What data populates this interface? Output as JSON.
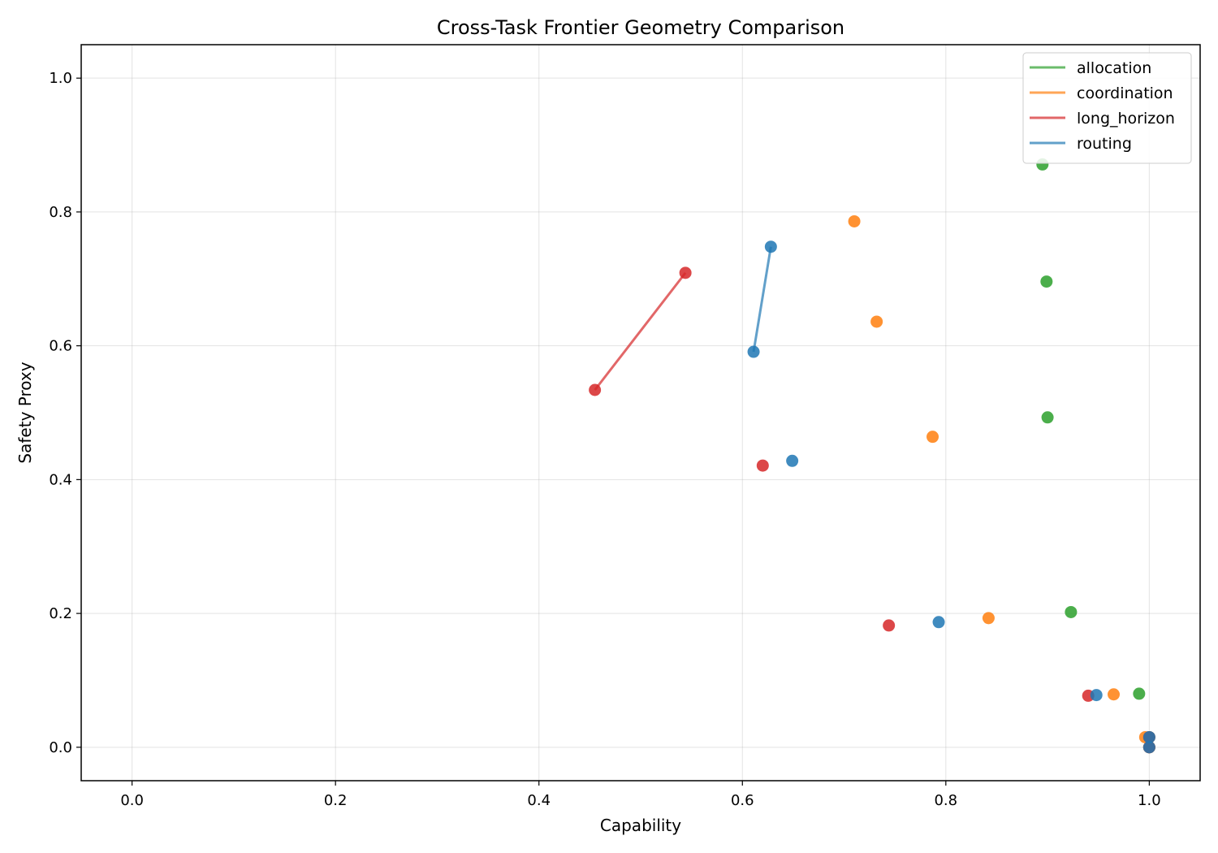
{
  "chart_data": {
    "type": "scatter",
    "title": "Cross-Task Frontier Geometry Comparison",
    "xlabel": "Capability",
    "ylabel": "Safety Proxy",
    "xlim": [
      -0.05,
      1.05
    ],
    "ylim": [
      -0.05,
      1.05
    ],
    "xticks": [
      0.0,
      0.2,
      0.4,
      0.6,
      0.8,
      1.0
    ],
    "yticks": [
      0.0,
      0.2,
      0.4,
      0.6,
      0.8,
      1.0
    ],
    "tick_labels_x": [
      "0.0",
      "0.2",
      "0.4",
      "0.6",
      "0.8",
      "1.0"
    ],
    "tick_labels_y": [
      "0.0",
      "0.2",
      "0.4",
      "0.6",
      "0.8",
      "1.0"
    ],
    "grid": true,
    "legend_position": "top-right",
    "series": [
      {
        "name": "allocation",
        "color": "#2ca02c",
        "points": [
          [
            0.895,
            0.871
          ],
          [
            0.899,
            0.696
          ],
          [
            0.9,
            0.493
          ],
          [
            0.923,
            0.202
          ],
          [
            0.99,
            0.08
          ],
          [
            1.0,
            0.015
          ],
          [
            1.0,
            0.0
          ]
        ],
        "frontier": []
      },
      {
        "name": "coordination",
        "color": "#ff7f0e",
        "points": [
          [
            0.71,
            0.786
          ],
          [
            0.732,
            0.636
          ],
          [
            0.787,
            0.464
          ],
          [
            0.842,
            0.193
          ],
          [
            0.965,
            0.079
          ],
          [
            0.996,
            0.015
          ],
          [
            1.0,
            0.0
          ]
        ],
        "frontier": []
      },
      {
        "name": "long_horizon",
        "color": "#d62728",
        "points": [
          [
            0.455,
            0.534
          ],
          [
            0.544,
            0.709
          ],
          [
            0.62,
            0.421
          ],
          [
            0.744,
            0.182
          ],
          [
            0.94,
            0.077
          ],
          [
            1.0,
            0.015
          ],
          [
            1.0,
            0.0
          ]
        ],
        "frontier": [
          [
            0.455,
            0.534
          ],
          [
            0.544,
            0.709
          ]
        ]
      },
      {
        "name": "routing",
        "color": "#1f77b4",
        "points": [
          [
            0.611,
            0.591
          ],
          [
            0.628,
            0.748
          ],
          [
            0.649,
            0.428
          ],
          [
            0.793,
            0.187
          ],
          [
            0.948,
            0.078
          ],
          [
            1.0,
            0.015
          ],
          [
            1.0,
            0.0
          ]
        ],
        "frontier": [
          [
            0.611,
            0.591
          ],
          [
            0.628,
            0.748
          ]
        ]
      }
    ]
  }
}
